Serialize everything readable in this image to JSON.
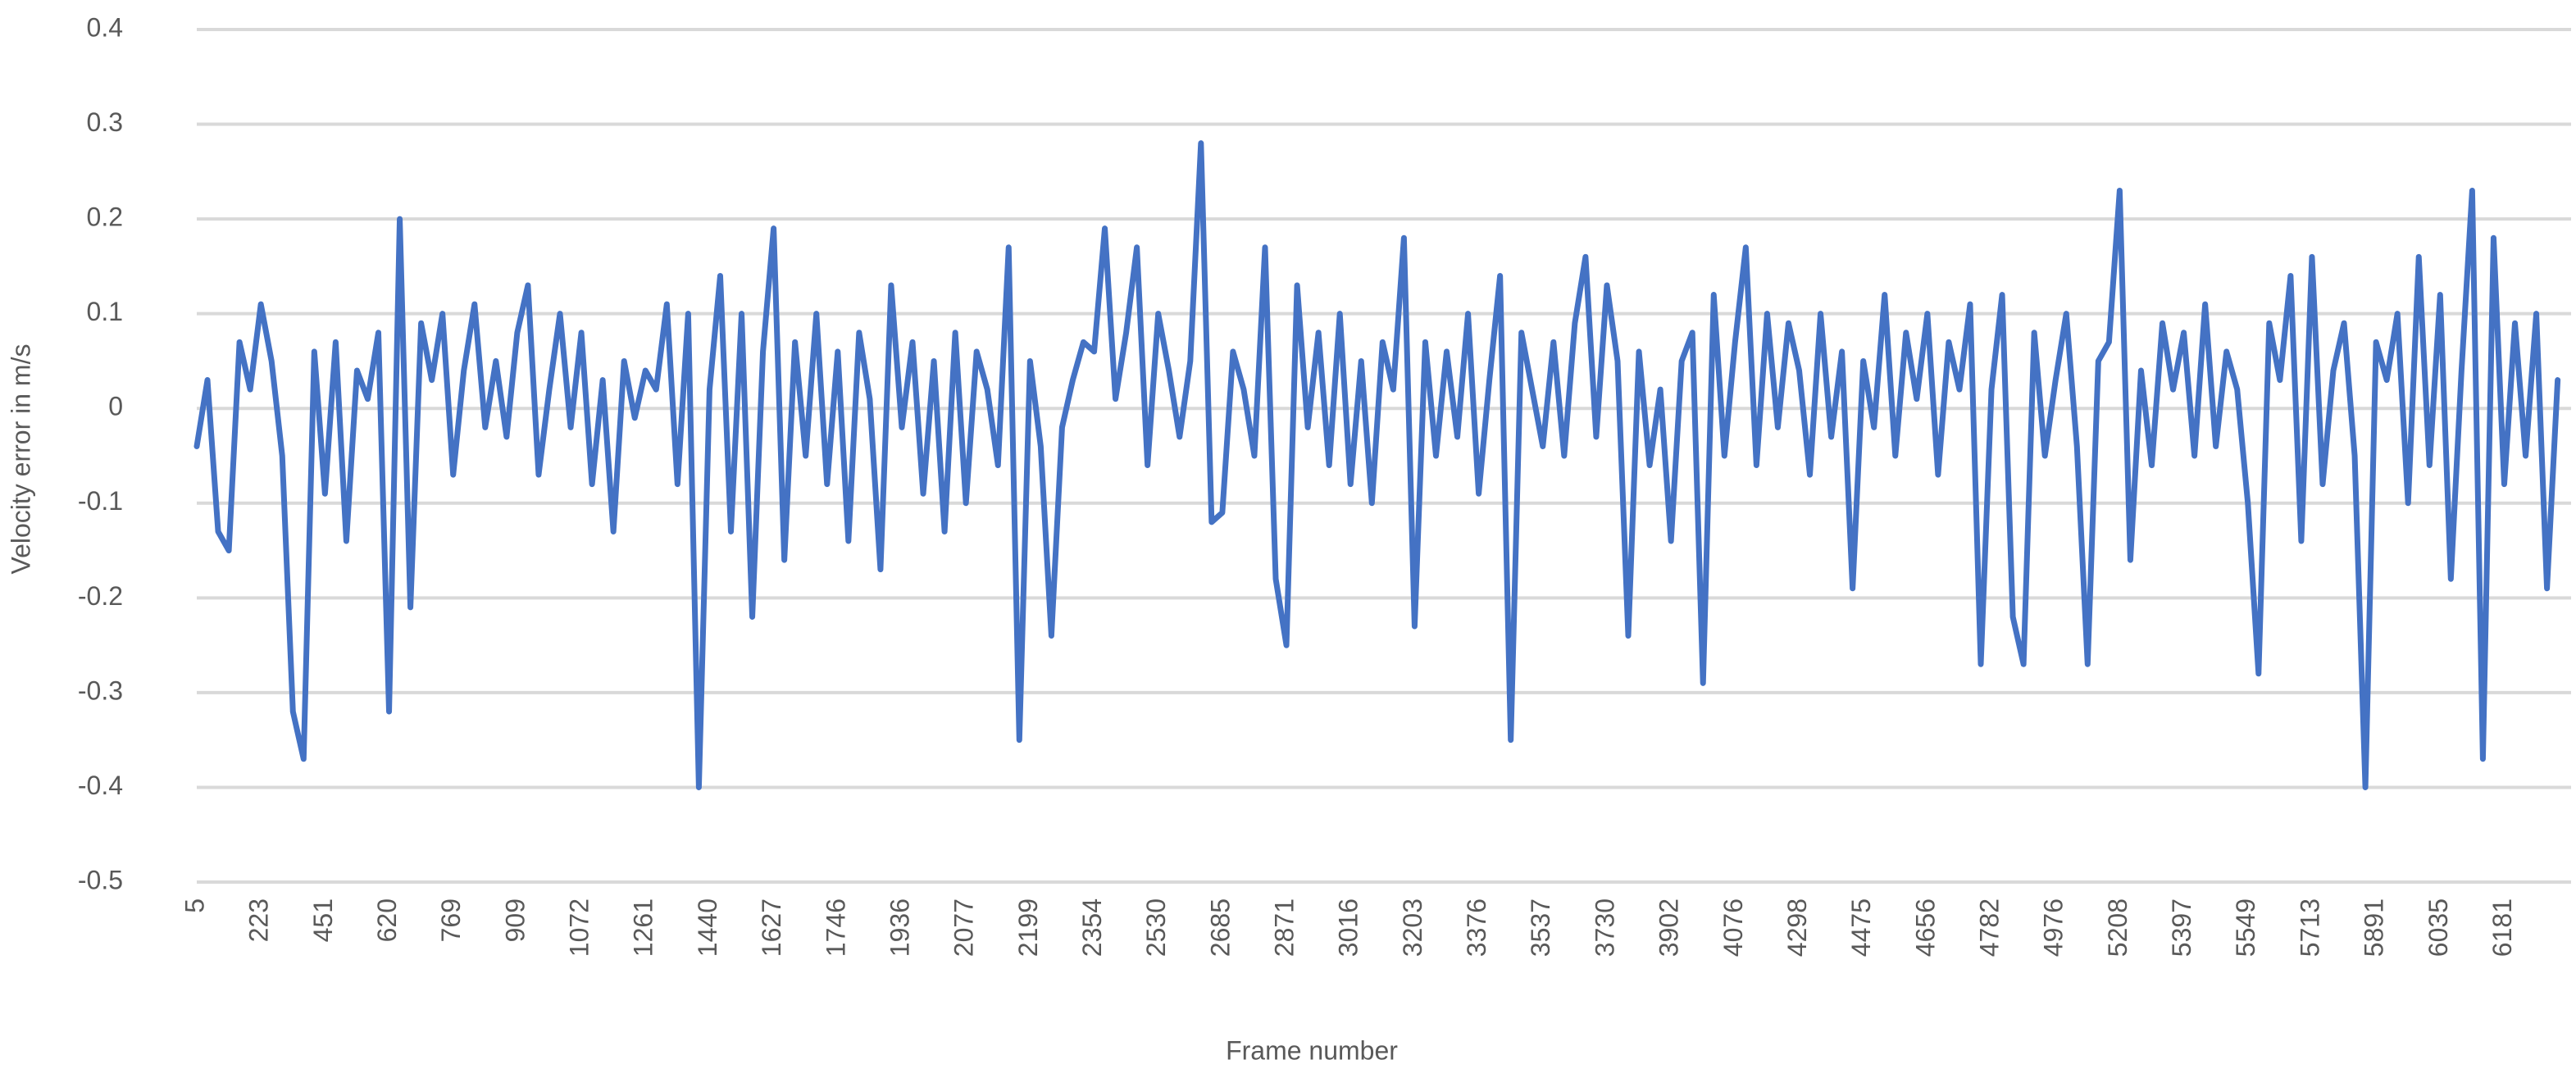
{
  "chart_data": {
    "type": "line",
    "x_label": "Frame number",
    "y_label": "Velocity error in m/s",
    "color": "#4472c4",
    "grid": true,
    "ylim": [
      -0.5,
      0.4
    ],
    "yticks": [
      -0.5,
      -0.4,
      -0.3,
      -0.2,
      -0.1,
      0,
      0.1,
      0.2,
      0.3,
      0.4
    ],
    "categories": [
      "5",
      null,
      null,
      null,
      null,
      null,
      "223",
      null,
      null,
      null,
      null,
      null,
      "451",
      null,
      null,
      null,
      null,
      null,
      "620",
      null,
      null,
      null,
      null,
      null,
      "769",
      null,
      null,
      null,
      null,
      null,
      "909",
      null,
      null,
      null,
      null,
      null,
      "1072",
      null,
      null,
      null,
      null,
      null,
      "1261",
      null,
      null,
      null,
      null,
      null,
      "1440",
      null,
      null,
      null,
      null,
      null,
      "1627",
      null,
      null,
      null,
      null,
      null,
      "1746",
      null,
      null,
      null,
      null,
      null,
      "1936",
      null,
      null,
      null,
      null,
      null,
      "2077",
      null,
      null,
      null,
      null,
      null,
      "2199",
      null,
      null,
      null,
      null,
      null,
      "2354",
      null,
      null,
      null,
      null,
      null,
      "2530",
      null,
      null,
      null,
      null,
      null,
      "2685",
      null,
      null,
      null,
      null,
      null,
      "2871",
      null,
      null,
      null,
      null,
      null,
      "3016",
      null,
      null,
      null,
      null,
      null,
      "3203",
      null,
      null,
      null,
      null,
      null,
      "3376",
      null,
      null,
      null,
      null,
      null,
      "3537",
      null,
      null,
      null,
      null,
      null,
      "3730",
      null,
      null,
      null,
      null,
      null,
      "3902",
      null,
      null,
      null,
      null,
      null,
      "4076",
      null,
      null,
      null,
      null,
      null,
      "4298",
      null,
      null,
      null,
      null,
      null,
      "4475",
      null,
      null,
      null,
      null,
      null,
      "4656",
      null,
      null,
      null,
      null,
      null,
      "4782",
      null,
      null,
      null,
      null,
      null,
      "4976",
      null,
      null,
      null,
      null,
      null,
      "5208",
      null,
      null,
      null,
      null,
      null,
      "5397",
      null,
      null,
      null,
      null,
      null,
      "5549",
      null,
      null,
      null,
      null,
      null,
      "5713",
      null,
      null,
      null,
      null,
      null,
      "5891",
      null,
      null,
      null,
      null,
      null,
      "6035",
      null,
      null,
      null,
      null,
      null,
      "6181",
      null,
      null,
      null,
      null,
      null
    ],
    "values": [
      -0.04,
      0.03,
      -0.13,
      -0.15,
      0.07,
      0.02,
      0.11,
      0.05,
      -0.05,
      -0.32,
      -0.37,
      0.06,
      -0.09,
      0.07,
      -0.14,
      0.04,
      0.01,
      0.08,
      -0.32,
      0.2,
      -0.21,
      0.09,
      0.03,
      0.1,
      -0.07,
      0.04,
      0.11,
      -0.02,
      0.05,
      -0.03,
      0.08,
      0.13,
      -0.07,
      0.02,
      0.1,
      -0.02,
      0.08,
      -0.08,
      0.03,
      -0.13,
      0.05,
      -0.01,
      0.04,
      0.02,
      0.11,
      -0.08,
      0.1,
      -0.4,
      0.02,
      0.14,
      -0.13,
      0.1,
      -0.22,
      0.06,
      0.19,
      -0.16,
      0.07,
      -0.05,
      0.1,
      -0.08,
      0.06,
      -0.14,
      0.08,
      0.01,
      -0.17,
      0.13,
      -0.02,
      0.07,
      -0.09,
      0.05,
      -0.13,
      0.08,
      -0.1,
      0.06,
      0.02,
      -0.06,
      0.17,
      -0.35,
      0.05,
      -0.04,
      -0.24,
      -0.02,
      0.03,
      0.07,
      0.06,
      0.19,
      0.01,
      0.08,
      0.17,
      -0.06,
      0.1,
      0.04,
      -0.03,
      0.05,
      0.28,
      -0.12,
      -0.11,
      0.06,
      0.02,
      -0.05,
      0.17,
      -0.18,
      -0.25,
      0.13,
      -0.02,
      0.08,
      -0.06,
      0.1,
      -0.08,
      0.05,
      -0.1,
      0.07,
      0.02,
      0.18,
      -0.23,
      0.07,
      -0.05,
      0.06,
      -0.03,
      0.1,
      -0.09,
      0.03,
      0.14,
      -0.35,
      0.08,
      0.02,
      -0.04,
      0.07,
      -0.05,
      0.09,
      0.16,
      -0.03,
      0.13,
      0.05,
      -0.24,
      0.06,
      -0.06,
      0.02,
      -0.14,
      0.05,
      0.08,
      -0.29,
      0.12,
      -0.05,
      0.07,
      0.17,
      -0.06,
      0.1,
      -0.02,
      0.09,
      0.04,
      -0.07,
      0.1,
      -0.03,
      0.06,
      -0.19,
      0.05,
      -0.02,
      0.12,
      -0.05,
      0.08,
      0.01,
      0.1,
      -0.07,
      0.07,
      0.02,
      0.11,
      -0.27,
      0.02,
      0.12,
      -0.22,
      -0.27,
      0.08,
      -0.05,
      0.03,
      0.1,
      -0.04,
      -0.27,
      0.05,
      0.07,
      0.23,
      -0.16,
      0.04,
      -0.06,
      0.09,
      0.02,
      0.08,
      -0.05,
      0.11,
      -0.04,
      0.06,
      0.02,
      -0.1,
      -0.28,
      0.09,
      0.03,
      0.14,
      -0.14,
      0.16,
      -0.08,
      0.04,
      0.09,
      -0.05,
      -0.4,
      0.07,
      0.03,
      0.1,
      -0.1,
      0.16,
      -0.06,
      0.12,
      -0.18,
      0.04,
      0.23,
      -0.37,
      0.18,
      -0.08,
      0.09,
      -0.05,
      0.1,
      -0.19,
      0.03
    ]
  }
}
